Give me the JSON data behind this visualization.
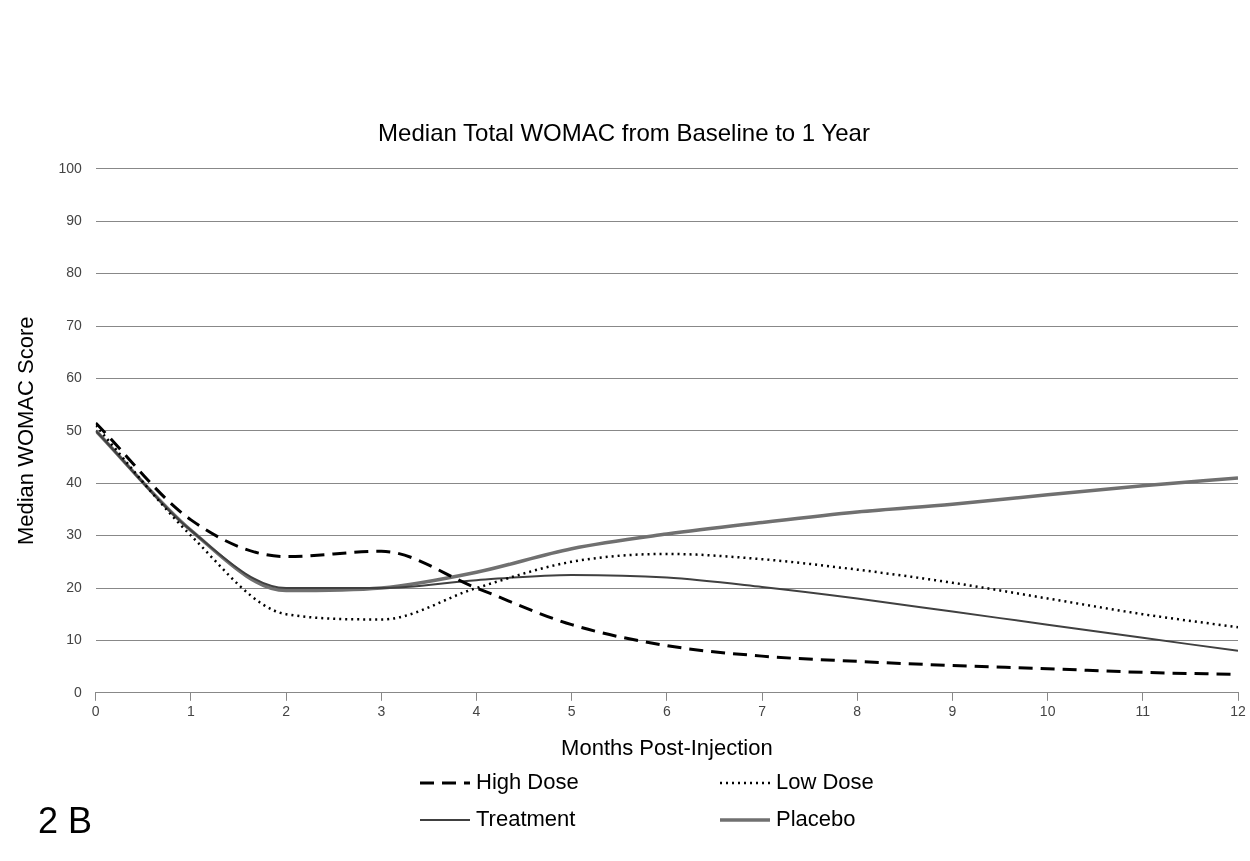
{
  "chart_data": {
    "type": "line",
    "title": "Median Total WOMAC from Baseline to 1 Year",
    "xlabel": "Months Post-Injection",
    "ylabel": "Median WOMAC Score",
    "x": [
      0,
      1,
      2,
      3,
      4,
      5,
      6,
      7,
      8,
      9,
      10,
      11,
      12
    ],
    "xlim": [
      0,
      12
    ],
    "xticks": [
      0,
      1,
      2,
      3,
      4,
      5,
      6,
      7,
      8,
      9,
      10,
      11,
      12
    ],
    "ylim": [
      0,
      100
    ],
    "yticks": [
      0,
      10,
      20,
      30,
      40,
      50,
      60,
      70,
      80,
      90,
      100
    ],
    "grid": "y",
    "legend": "bottom",
    "marker": "none",
    "annotations": [
      "2 B"
    ],
    "series": [
      {
        "name": "High Dose",
        "color": "#000000",
        "line_style": "dashed",
        "values": [
          51.5,
          33,
          26,
          27,
          20,
          13,
          9,
          7,
          6,
          5.2,
          4.6,
          3.9,
          3.5
        ]
      },
      {
        "name": "Low Dose",
        "color": "#000000",
        "line_style": "dotted",
        "values": [
          51,
          30,
          15,
          14,
          20,
          25,
          26.5,
          25.5,
          23.5,
          21,
          18,
          15,
          12.5
        ]
      },
      {
        "name": "Treatment",
        "color": "#404040",
        "line_style": "solid",
        "values": [
          50,
          31,
          20,
          20,
          21.5,
          22.5,
          22,
          20.2,
          18,
          15.5,
          13,
          10.5,
          8
        ]
      },
      {
        "name": "Placebo",
        "color": "#707070",
        "line_style": "solid",
        "values": [
          50,
          31,
          19.5,
          20,
          23,
          27.5,
          30.3,
          32.5,
          34.5,
          36,
          37.8,
          39.5,
          41
        ]
      }
    ]
  }
}
